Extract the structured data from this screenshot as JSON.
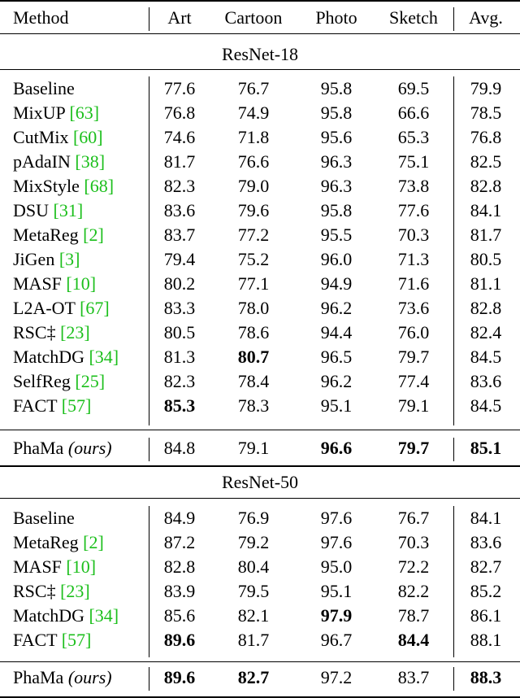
{
  "chart_data": {
    "type": "table",
    "columns": [
      "Method",
      "Art",
      "Cartoon",
      "Photo",
      "Sketch",
      "Avg."
    ],
    "sections": [
      {
        "title": "ResNet-18",
        "rows": [
          {
            "method": "Baseline",
            "cite": "",
            "values": [
              "77.6",
              "76.7",
              "95.8",
              "69.5",
              "79.9"
            ],
            "bold": []
          },
          {
            "method": "MixUP ",
            "cite": "[63]",
            "values": [
              "76.8",
              "74.9",
              "95.8",
              "66.6",
              "78.5"
            ],
            "bold": []
          },
          {
            "method": "CutMix ",
            "cite": "[60]",
            "values": [
              "74.6",
              "71.8",
              "95.6",
              "65.3",
              "76.8"
            ],
            "bold": []
          },
          {
            "method": "pAdaIN ",
            "cite": "[38]",
            "values": [
              "81.7",
              "76.6",
              "96.3",
              "75.1",
              "82.5"
            ],
            "bold": []
          },
          {
            "method": "MixStyle ",
            "cite": "[68]",
            "values": [
              "82.3",
              "79.0",
              "96.3",
              "73.8",
              "82.8"
            ],
            "bold": []
          },
          {
            "method": "DSU ",
            "cite": "[31]",
            "values": [
              "83.6",
              "79.6",
              "95.8",
              "77.6",
              "84.1"
            ],
            "bold": []
          },
          {
            "method": "MetaReg ",
            "cite": "[2]",
            "values": [
              "83.7",
              "77.2",
              "95.5",
              "70.3",
              "81.7"
            ],
            "bold": []
          },
          {
            "method": "JiGen ",
            "cite": "[3]",
            "values": [
              "79.4",
              "75.2",
              "96.0",
              "71.3",
              "80.5"
            ],
            "bold": []
          },
          {
            "method": "MASF ",
            "cite": "[10]",
            "values": [
              "80.2",
              "77.1",
              "94.9",
              "71.6",
              "81.1"
            ],
            "bold": []
          },
          {
            "method": "L2A-OT ",
            "cite": "[67]",
            "values": [
              "83.3",
              "78.0",
              "96.2",
              "73.6",
              "82.8"
            ],
            "bold": []
          },
          {
            "method": "RSC‡  ",
            "cite": "[23]",
            "values": [
              "80.5",
              "78.6",
              "94.4",
              "76.0",
              "82.4"
            ],
            "bold": []
          },
          {
            "method": "MatchDG ",
            "cite": "[34]",
            "values": [
              "81.3",
              "80.7",
              "96.5",
              "79.7",
              "84.5"
            ],
            "bold": [
              1
            ]
          },
          {
            "method": "SelfReg ",
            "cite": "[25]",
            "values": [
              "82.3",
              "78.4",
              "96.2",
              "77.4",
              "83.6"
            ],
            "bold": []
          },
          {
            "method": "FACT ",
            "cite": "[57]",
            "values": [
              "85.3",
              "78.3",
              "95.1",
              "79.1",
              "84.5"
            ],
            "bold": [
              0
            ]
          }
        ],
        "ours": {
          "method": "PhaMa ",
          "method_italic": "(ours)",
          "values": [
            "84.8",
            "79.1",
            "96.6",
            "79.7",
            "85.1"
          ],
          "bold": [
            2,
            3,
            4
          ]
        }
      },
      {
        "title": "ResNet-50",
        "rows": [
          {
            "method": "Baseline",
            "cite": "",
            "values": [
              "84.9",
              "76.9",
              "97.6",
              "76.7",
              "84.1"
            ],
            "bold": []
          },
          {
            "method": "MetaReg ",
            "cite": "[2]",
            "values": [
              "87.2",
              "79.2",
              "97.6",
              "70.3",
              "83.6"
            ],
            "bold": []
          },
          {
            "method": "MASF ",
            "cite": "[10]",
            "values": [
              "82.8",
              "80.4",
              "95.0",
              "72.2",
              "82.7"
            ],
            "bold": []
          },
          {
            "method": "RSC‡  ",
            "cite": "[23]",
            "values": [
              "83.9",
              "79.5",
              "95.1",
              "82.2",
              "85.2"
            ],
            "bold": []
          },
          {
            "method": "MatchDG ",
            "cite": "[34]",
            "values": [
              "85.6",
              "82.1",
              "97.9",
              "78.7",
              "86.1"
            ],
            "bold": [
              2
            ]
          },
          {
            "method": "FACT ",
            "cite": "[57]",
            "values": [
              "89.6",
              "81.7",
              "96.7",
              "84.4",
              "88.1"
            ],
            "bold": [
              0,
              3
            ]
          }
        ],
        "ours": {
          "method": "PhaMa ",
          "method_italic": "(ours)",
          "values": [
            "89.6",
            "82.7",
            "97.2",
            "83.7",
            "88.3"
          ],
          "bold": [
            0,
            1,
            4
          ]
        }
      }
    ]
  }
}
